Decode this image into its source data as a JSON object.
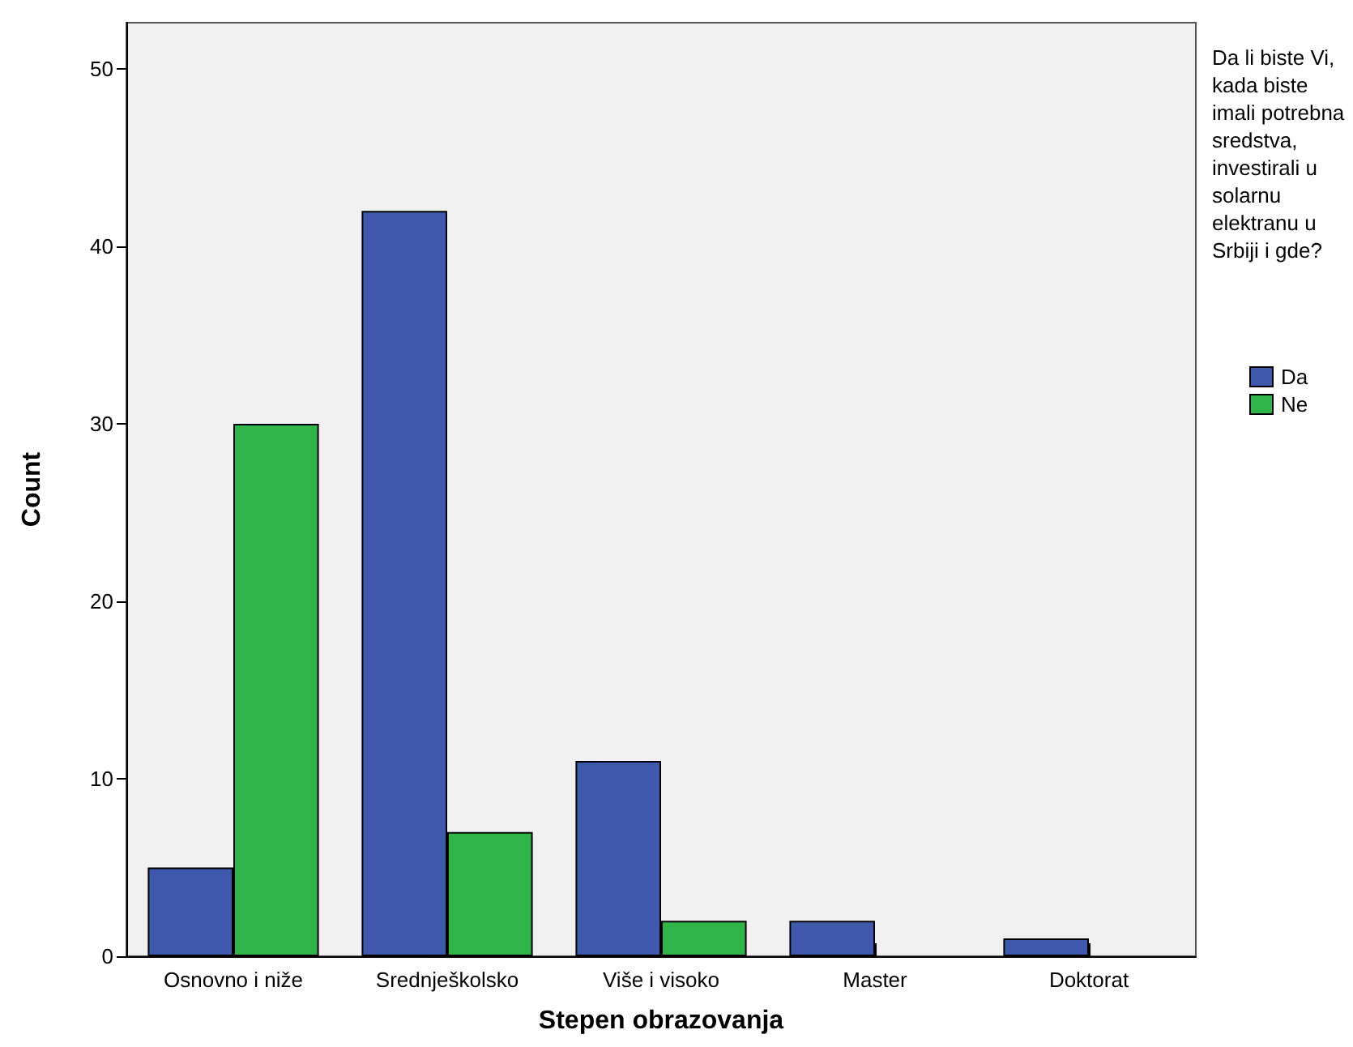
{
  "chart_data": {
    "type": "bar",
    "xlabel": "Stepen obrazovanja",
    "ylabel": "Count",
    "legend_title": "Da li biste Vi, kada biste imali potrebna sredstva, investirali u solarnu elektranu u Srbiji i gde?",
    "categories": [
      "Osnovno i niže",
      "Srednješkolsko",
      "Više i visoko",
      "Master",
      "Doktorat"
    ],
    "series": [
      {
        "name": "Da",
        "color": "#3e58ac",
        "values": [
          5,
          42,
          11,
          2,
          1
        ]
      },
      {
        "name": "Ne",
        "color": "#2fb548",
        "values": [
          30,
          7,
          2,
          null,
          null
        ]
      }
    ],
    "ylim": [
      0,
      52.6
    ],
    "yticks": [
      0,
      10,
      20,
      30,
      40,
      50
    ],
    "grid": false,
    "legend": "right"
  }
}
